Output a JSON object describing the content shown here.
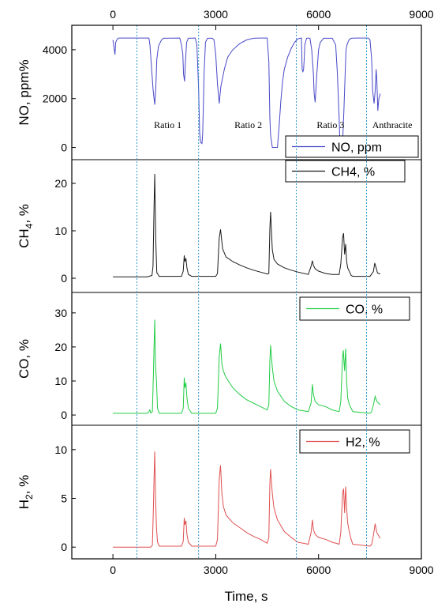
{
  "chart_data": {
    "type": "line",
    "xlabel": "Time, s",
    "xlim": [
      -1200,
      9000
    ],
    "x_ticks": [
      0,
      3000,
      6000,
      9000
    ],
    "top_x_ticks": [
      0,
      3000,
      6000,
      9000
    ],
    "vlines": [
      700,
      2500,
      5350,
      7400
    ],
    "regions": [
      {
        "label": "Ratio 1",
        "x": 1600
      },
      {
        "label": "Ratio 2",
        "x": 3950
      },
      {
        "label": "Ratio 3",
        "x": 6350
      },
      {
        "label": "Anthracite",
        "x": 8150
      }
    ],
    "panels": [
      {
        "name": "NO, ppm",
        "legend": "NO, ppm",
        "ylabel": "NO, ppm%",
        "ylim": [
          -500,
          5000
        ],
        "yticks": [
          0,
          2000,
          4000
        ],
        "color": "#4848c8",
        "x": [
          0,
          30,
          60,
          80,
          130,
          180,
          220,
          1050,
          1080,
          1130,
          1170,
          1220,
          1250,
          1280,
          1330,
          1380,
          1420,
          1470,
          1950,
          2000,
          2040,
          2060,
          2090,
          2110,
          2150,
          2200,
          2400,
          2450,
          2500,
          2530,
          2560,
          2600,
          2620,
          2660,
          2700,
          2760,
          2900,
          2950,
          3000,
          3050,
          3100,
          3150,
          3250,
          3350,
          3500,
          3700,
          3900,
          4100,
          4300,
          4500,
          4550,
          4580,
          4600,
          4650,
          4700,
          4800,
          4850,
          4900,
          4950,
          5000,
          5100,
          5200,
          5300,
          5400,
          5500,
          5520,
          5540,
          5560,
          5580,
          5600,
          5650,
          5700,
          5750,
          5800,
          5850,
          5870,
          5900,
          5950,
          6000,
          6050,
          6150,
          6400,
          6500,
          6550,
          6600,
          6620,
          6640,
          6680,
          6700,
          6740,
          6780,
          6800,
          6830,
          6870,
          6900,
          6950,
          7100,
          7300,
          7450,
          7500,
          7550,
          7580,
          7620,
          7650,
          7680,
          7700,
          7730,
          7760,
          7800
        ],
        "values": [
          4400,
          4100,
          3800,
          4300,
          4450,
          4480,
          4480,
          4480,
          4200,
          3200,
          2400,
          1750,
          2400,
          3600,
          4150,
          4300,
          4400,
          4470,
          4480,
          4200,
          3800,
          3000,
          2700,
          3400,
          4300,
          4470,
          4480,
          4200,
          2400,
          600,
          200,
          160,
          600,
          3000,
          4300,
          4470,
          4470,
          4400,
          3800,
          2600,
          1800,
          2500,
          3200,
          3700,
          4000,
          4250,
          4400,
          4470,
          4480,
          4480,
          3500,
          1200,
          500,
          0,
          0,
          0,
          900,
          1900,
          2700,
          3200,
          3700,
          4050,
          4300,
          4450,
          4480,
          3200,
          3100,
          3150,
          3600,
          4200,
          4470,
          4480,
          4470,
          4000,
          3000,
          2200,
          1850,
          3000,
          4000,
          4300,
          4470,
          4470,
          4200,
          3000,
          1200,
          400,
          100,
          0,
          150,
          1500,
          3200,
          4000,
          4200,
          4350,
          4420,
          4470,
          4480,
          4480,
          4480,
          4400,
          3600,
          2300,
          1800,
          2300,
          3200,
          2800,
          1500,
          2000,
          2200
        ]
      },
      {
        "name": "CH4, %",
        "legend": "CH4, %",
        "ylabel": "CH4, %",
        "ylim": [
          -3,
          25
        ],
        "yticks": [
          0,
          10,
          20
        ],
        "color": "#1a1a1a",
        "x": [
          0,
          1000,
          1100,
          1140,
          1170,
          1200,
          1220,
          1250,
          1280,
          1350,
          2000,
          2050,
          2080,
          2100,
          2130,
          2160,
          2200,
          2300,
          3000,
          3050,
          3100,
          3140,
          3200,
          3300,
          3500,
          3700,
          3900,
          4100,
          4300,
          4500,
          4550,
          4580,
          4600,
          4650,
          4700,
          4800,
          5000,
          5200,
          5400,
          5700,
          5780,
          5820,
          5850,
          5900,
          6000,
          6200,
          6400,
          6600,
          6650,
          6700,
          6730,
          6760,
          6790,
          6820,
          6850,
          6900,
          6950,
          7000,
          7500,
          7600,
          7640,
          7680,
          7720,
          7800
        ],
        "values": [
          0.3,
          0.3,
          0.5,
          0.6,
          2.5,
          15,
          22,
          8,
          1.2,
          0.4,
          0.4,
          1.5,
          4.8,
          3.5,
          4.2,
          2.2,
          0.8,
          0.4,
          0.4,
          1,
          8.5,
          10.3,
          6.2,
          4.5,
          3.5,
          2.8,
          2.2,
          1.7,
          1.3,
          0.9,
          1,
          10.5,
          14,
          6,
          4,
          3,
          2.2,
          1.7,
          1.3,
          0.8,
          2.5,
          3.7,
          2.7,
          2,
          1.5,
          1,
          0.8,
          0.8,
          3,
          8.5,
          9.5,
          5,
          7.2,
          3.5,
          2.2,
          1.4,
          0.6,
          0.4,
          0.4,
          1.4,
          3.2,
          2.2,
          1.1,
          0.9
        ]
      },
      {
        "name": "CO, %",
        "legend": "CO, %",
        "ylabel": "CO, %",
        "ylim": [
          -3,
          36
        ],
        "yticks": [
          0,
          10,
          20,
          30
        ],
        "color": "#22cc44",
        "x": [
          0,
          1000,
          1050,
          1080,
          1100,
          1150,
          1180,
          1200,
          1220,
          1240,
          1270,
          1300,
          1350,
          2000,
          2050,
          2080,
          2100,
          2130,
          2160,
          2200,
          2300,
          3000,
          3050,
          3100,
          3140,
          3180,
          3220,
          3300,
          3500,
          3700,
          3900,
          4100,
          4300,
          4500,
          4550,
          4580,
          4600,
          4650,
          4700,
          4800,
          5000,
          5200,
          5400,
          5700,
          5780,
          5820,
          5850,
          5900,
          6000,
          6200,
          6400,
          6600,
          6650,
          6700,
          6720,
          6760,
          6790,
          6820,
          6850,
          6900,
          6950,
          7000,
          7500,
          7550,
          7600,
          7650,
          7700,
          7800
        ],
        "values": [
          0.5,
          0.5,
          1,
          1.5,
          0.6,
          1,
          12,
          20,
          28,
          15,
          10,
          2,
          0.5,
          0.5,
          2,
          11,
          8,
          9.5,
          5,
          2,
          0.5,
          0.5,
          2,
          17,
          21,
          15,
          13,
          11,
          8,
          6,
          4.5,
          3.5,
          2.5,
          1.5,
          3,
          16,
          20.5,
          14,
          10,
          7,
          4,
          2.5,
          1.5,
          1,
          3.5,
          9,
          6,
          4,
          3,
          2.5,
          1.5,
          1,
          4,
          17,
          19,
          13,
          19.5,
          10,
          5,
          3,
          2,
          1,
          0.5,
          1,
          3,
          5.5,
          4,
          3
        ]
      },
      {
        "name": "H2, %",
        "legend": "H2, %",
        "ylabel": "H2, %",
        "ylim": [
          -1.2,
          12.5
        ],
        "yticks": [
          0,
          5,
          10
        ],
        "color": "#e05050",
        "x": [
          0,
          1000,
          1100,
          1150,
          1180,
          1200,
          1220,
          1240,
          1270,
          1300,
          1350,
          2000,
          2050,
          2080,
          2100,
          2130,
          2160,
          2200,
          2300,
          3000,
          3050,
          3100,
          3140,
          3180,
          3220,
          3300,
          3500,
          3700,
          3900,
          4100,
          4300,
          4500,
          4550,
          4580,
          4600,
          4650,
          4700,
          4800,
          5000,
          5200,
          5400,
          5700,
          5780,
          5820,
          5850,
          5900,
          6000,
          6200,
          6400,
          6600,
          6650,
          6700,
          6730,
          6760,
          6790,
          6820,
          6850,
          6900,
          6950,
          7000,
          7500,
          7550,
          7600,
          7650,
          7700,
          7800
        ],
        "values": [
          0,
          0,
          0,
          0.2,
          4,
          7,
          9.8,
          5.5,
          2,
          0.5,
          0.1,
          0.1,
          0.6,
          3,
          2.3,
          2.7,
          1.3,
          0.5,
          0.1,
          0.1,
          0.8,
          7,
          8.4,
          5.5,
          4.2,
          3.3,
          2.5,
          2,
          1.5,
          1.1,
          0.8,
          0.4,
          1,
          6.5,
          8,
          5.5,
          4,
          2.8,
          1.6,
          1,
          0.5,
          0.3,
          1.5,
          2.8,
          1.8,
          1.3,
          1,
          0.8,
          0.5,
          0.3,
          1.5,
          5.5,
          6,
          3.5,
          6.2,
          4,
          2.5,
          1.5,
          0.8,
          0.3,
          0.1,
          0.3,
          1.2,
          2.4,
          1.5,
          0.9
        ]
      }
    ]
  }
}
